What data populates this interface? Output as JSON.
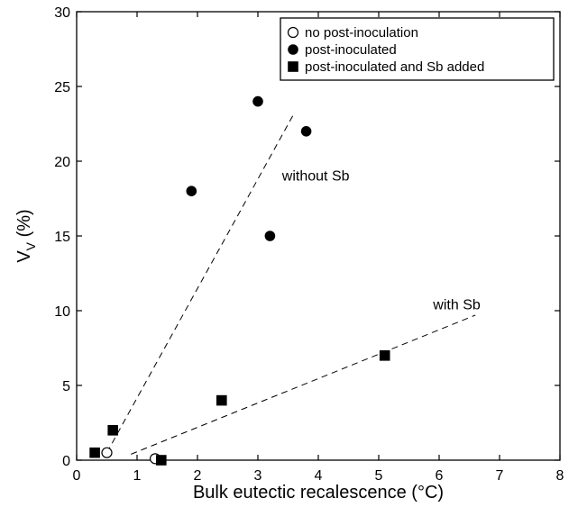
{
  "chart_data": {
    "type": "scatter",
    "title": "",
    "xlabel": "Bulk eutectic recalescence (°C)",
    "ylabel": {
      "main": "V",
      "sub": "V",
      "unit": " (%)"
    },
    "xlim": [
      0,
      8
    ],
    "ylim": [
      0,
      30
    ],
    "xticks": [
      0,
      1,
      2,
      3,
      4,
      5,
      6,
      7,
      8
    ],
    "yticks": [
      0,
      5,
      10,
      15,
      20,
      25,
      30
    ],
    "grid": false,
    "legend_position": "top-right",
    "series": [
      {
        "name": "no post-inoculation",
        "marker": "open-circle",
        "points": [
          {
            "x": 0.5,
            "y": 0.5
          },
          {
            "x": 1.3,
            "y": 0.1
          }
        ]
      },
      {
        "name": "post-inoculated",
        "marker": "filled-circle",
        "points": [
          {
            "x": 1.9,
            "y": 18
          },
          {
            "x": 3.0,
            "y": 24
          },
          {
            "x": 3.2,
            "y": 15
          },
          {
            "x": 3.8,
            "y": 22
          }
        ]
      },
      {
        "name": "post-inoculated and Sb added",
        "marker": "filled-square",
        "points": [
          {
            "x": 0.3,
            "y": 0.5
          },
          {
            "x": 0.6,
            "y": 2
          },
          {
            "x": 1.4,
            "y": 0
          },
          {
            "x": 2.4,
            "y": 4
          },
          {
            "x": 5.1,
            "y": 7
          }
        ]
      }
    ],
    "trend_lines": [
      {
        "label": "without Sb",
        "from": {
          "x": 0.5,
          "y": 0.5
        },
        "to": {
          "x": 3.6,
          "y": 23.2
        }
      },
      {
        "label": "with Sb",
        "from": {
          "x": 0.9,
          "y": 0.4
        },
        "to": {
          "x": 6.6,
          "y": 9.7
        }
      }
    ],
    "annotations": [
      {
        "text": "without Sb",
        "x": 3.4,
        "y": 18.7
      },
      {
        "text": "with Sb",
        "x": 5.9,
        "y": 10.1
      }
    ]
  }
}
